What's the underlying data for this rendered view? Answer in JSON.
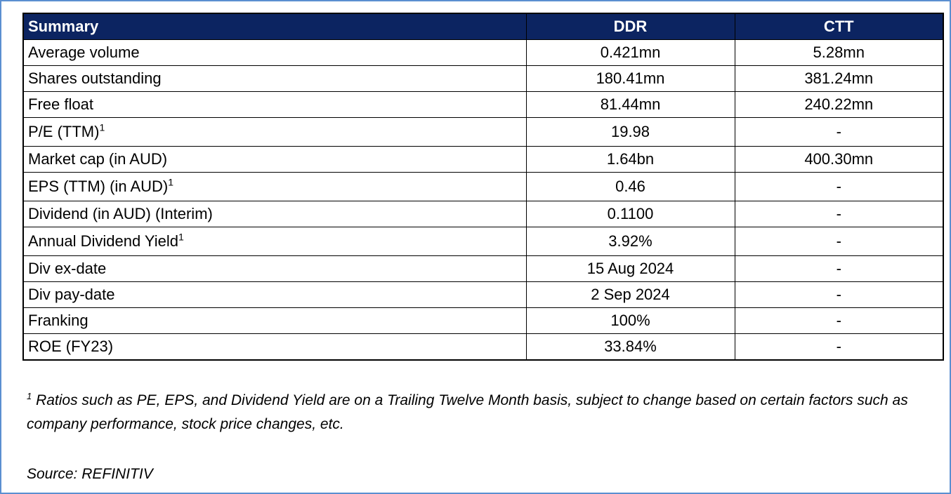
{
  "table": {
    "headers": [
      "Summary",
      "DDR",
      "CTT"
    ],
    "rows": [
      {
        "label": "Average volume",
        "sup": "",
        "ddr": "0.421mn",
        "ctt": "5.28mn"
      },
      {
        "label": "Shares outstanding",
        "sup": "",
        "ddr": "180.41mn",
        "ctt": "381.24mn"
      },
      {
        "label": "Free float",
        "sup": "",
        "ddr": "81.44mn",
        "ctt": "240.22mn"
      },
      {
        "label": "P/E (TTM)",
        "sup": "1",
        "ddr": "19.98",
        "ctt": "-"
      },
      {
        "label": "Market cap (in AUD)",
        "sup": "",
        "ddr": "1.64bn",
        "ctt": "400.30mn"
      },
      {
        "label": "EPS (TTM) (in AUD)",
        "sup": "1",
        "ddr": "0.46",
        "ctt": "-"
      },
      {
        "label": "Dividend (in AUD) (Interim)",
        "sup": "",
        "ddr": "0.1100",
        "ctt": "-"
      },
      {
        "label": "Annual Dividend Yield",
        "sup": "1",
        "ddr": "3.92%",
        "ctt": "-"
      },
      {
        "label": "Div ex-date",
        "sup": "",
        "ddr": "15 Aug 2024",
        "ctt": "-"
      },
      {
        "label": "Div pay-date",
        "sup": "",
        "ddr": "2 Sep 2024",
        "ctt": "-"
      },
      {
        "label": "Franking",
        "sup": "",
        "ddr": "100%",
        "ctt": "-"
      },
      {
        "label": "ROE (FY23)",
        "sup": "",
        "ddr": "33.84%",
        "ctt": "-"
      }
    ]
  },
  "footnote": {
    "marker": "1",
    "text": " Ratios such as PE, EPS, and Dividend Yield are on a Trailing Twelve Month basis, subject to change based on certain factors such as company performance, stock price changes, etc."
  },
  "source": "Source: REFINITIV",
  "colors": {
    "header_bg": "#0c2461",
    "header_text": "#ffffff",
    "frame_border": "#5b8fd0"
  }
}
